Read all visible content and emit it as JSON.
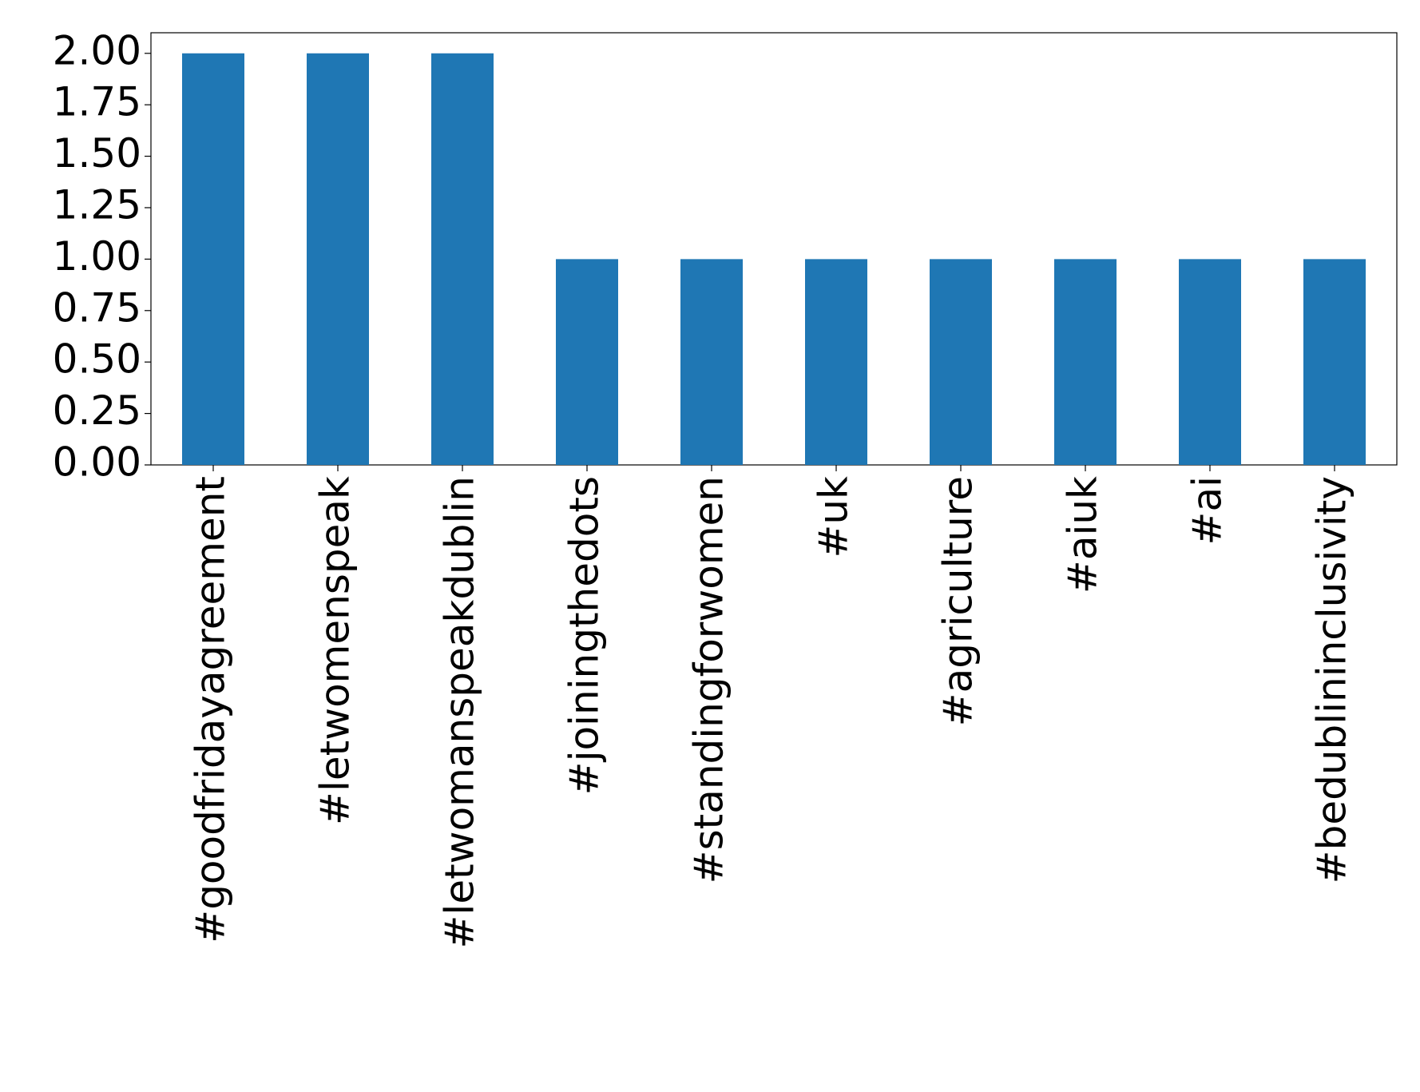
{
  "chart_data": {
    "type": "bar",
    "categories": [
      "#goodfridayagreement",
      "#letwomenspeak",
      "#letwomanspeakdublin",
      "#joiningthedots",
      "#standingforwomen",
      "#uk",
      "#agriculture",
      "#aiuk",
      "#ai",
      "#bedublininclusivity"
    ],
    "values": [
      2,
      2,
      2,
      1,
      1,
      1,
      1,
      1,
      1,
      1
    ],
    "color": "#1f77b4",
    "ylim": [
      0,
      2.1
    ],
    "yticks": [
      {
        "value": 0,
        "label": "0.00"
      },
      {
        "value": 0.25,
        "label": "0.25"
      },
      {
        "value": 0.5,
        "label": "0.50"
      },
      {
        "value": 0.75,
        "label": "0.75"
      },
      {
        "value": 1,
        "label": "1.00"
      },
      {
        "value": 1.25,
        "label": "1.25"
      },
      {
        "value": 1.5,
        "label": "1.50"
      },
      {
        "value": 1.75,
        "label": "1.75"
      },
      {
        "value": 2,
        "label": "2.00"
      }
    ],
    "grid": false
  }
}
